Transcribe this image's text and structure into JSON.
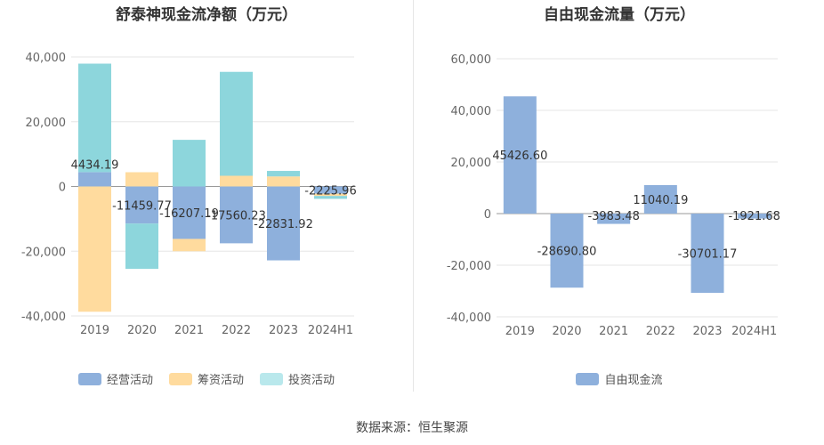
{
  "colors": {
    "operating": "#8eb0dc",
    "financing": "#ffdb9e",
    "investing": "#8dd6dc",
    "investing_legend": "#b9e8ec",
    "free_cash_flow": "#8eb0dc"
  },
  "source": "数据来源：恒生聚源",
  "chart_data": [
    {
      "type": "bar",
      "stacked": true,
      "title": "舒泰神现金流净额（万元）",
      "categories": [
        "2019",
        "2020",
        "2021",
        "2022",
        "2023",
        "2024H1"
      ],
      "series": [
        {
          "name": "经营活动",
          "values": [
            4434.19,
            -11459.77,
            -16207.19,
            -17560.23,
            -22831.92,
            -2225.96
          ]
        },
        {
          "name": "筹资活动",
          "values": [
            -38700,
            4400,
            -3800,
            3300,
            3100,
            -700
          ]
        },
        {
          "name": "投资活动",
          "values": [
            33500,
            -14000,
            14400,
            32100,
            1700,
            -900
          ]
        }
      ],
      "data_labels": [
        "4434.19",
        "-11459.77",
        "-16207.19",
        "-17560.23",
        "-22831.92",
        "-2225.96"
      ],
      "yticks": [
        "-40,000",
        "-20,000",
        "0",
        "20,000",
        "40,000"
      ],
      "ylim": [
        -40000,
        40000
      ],
      "grid": true,
      "legend": "bottom"
    },
    {
      "type": "bar",
      "title": "自由现金流量（万元）",
      "categories": [
        "2019",
        "2020",
        "2021",
        "2022",
        "2023",
        "2024H1"
      ],
      "series": [
        {
          "name": "自由现金流",
          "values": [
            45426.6,
            -28690.8,
            -3983.48,
            11040.19,
            -30701.17,
            -1921.68
          ]
        }
      ],
      "data_labels": [
        "45426.60",
        "-28690.80",
        "-3983.48",
        "11040.19",
        "-30701.17",
        "-1921.68"
      ],
      "yticks": [
        "-40,000",
        "-20,000",
        "0",
        "20,000",
        "40,000",
        "60,000"
      ],
      "ylim": [
        -40000,
        60000
      ],
      "grid": true,
      "legend": "bottom"
    }
  ]
}
